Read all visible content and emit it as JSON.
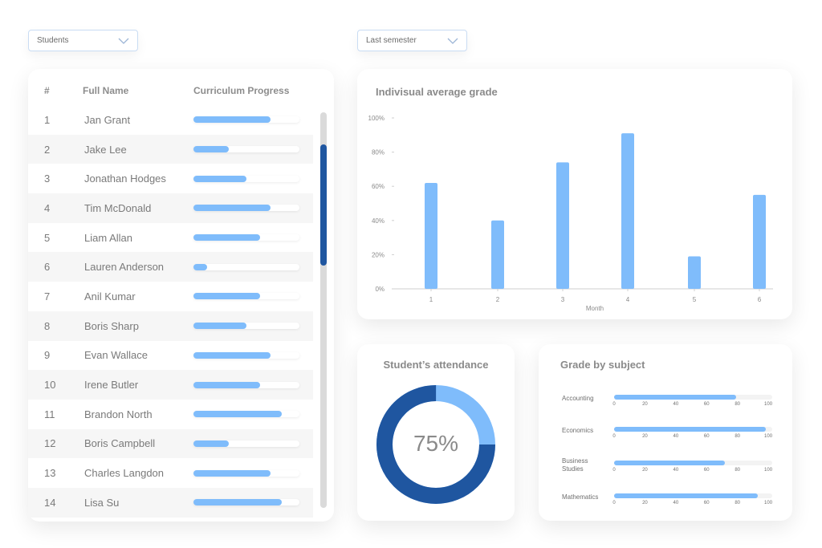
{
  "filters": {
    "group": "Students",
    "period": "Last semester"
  },
  "table": {
    "headers": {
      "num": "#",
      "name": "Full Name",
      "progress": "Curriculum Progress"
    },
    "rows": [
      {
        "num": "1",
        "name": "Jan Grant",
        "progress": 0.73
      },
      {
        "num": "2",
        "name": "Jake Lee",
        "progress": 0.33
      },
      {
        "num": "3",
        "name": "Jonathan Hodges",
        "progress": 0.5
      },
      {
        "num": "4",
        "name": "Tim McDonald",
        "progress": 0.73
      },
      {
        "num": "5",
        "name": "Liam Allan",
        "progress": 0.63
      },
      {
        "num": "6",
        "name": "Lauren Anderson",
        "progress": 0.13
      },
      {
        "num": "7",
        "name": "Anil Kumar",
        "progress": 0.63
      },
      {
        "num": "8",
        "name": "Boris Sharp",
        "progress": 0.5
      },
      {
        "num": "9",
        "name": "Evan Wallace",
        "progress": 0.73
      },
      {
        "num": "10",
        "name": "Irene Butler",
        "progress": 0.63
      },
      {
        "num": "11",
        "name": "Brandon North",
        "progress": 0.83
      },
      {
        "num": "12",
        "name": "Boris Campbell",
        "progress": 0.33
      },
      {
        "num": "13",
        "name": "Charles Langdon",
        "progress": 0.73
      },
      {
        "num": "14",
        "name": "Lisa Su",
        "progress": 0.83
      }
    ]
  },
  "avg_chart_title": "Indivisual average grade",
  "attendance": {
    "title": "Student’s attendance",
    "value": 0.75,
    "label": "75%",
    "colors": {
      "primary": "#1f56a0",
      "secondary": "#7fbcfb"
    }
  },
  "subjects_title": "Grade by subject",
  "chart_data": [
    {
      "type": "bar",
      "title": "Indivisual average grade",
      "categories": [
        "1",
        "2",
        "3",
        "4",
        "5",
        "6"
      ],
      "values": [
        62,
        40,
        74,
        91,
        19,
        55
      ],
      "xlabel": "Month",
      "ylabel": "",
      "ylim": [
        0,
        100
      ],
      "yticks": [
        "0%",
        "20%",
        "40%",
        "60%",
        "80%",
        "100%"
      ],
      "color": "#7fbcfb"
    },
    {
      "type": "bar",
      "title": "Grade by subject",
      "orientation": "horizontal",
      "categories": [
        "Accounting",
        "Economics",
        "Business Studies",
        "Mathematics"
      ],
      "values": [
        77,
        96,
        70,
        91
      ],
      "xlim": [
        0,
        100
      ],
      "xticks": [
        "0",
        "20",
        "40",
        "60",
        "80",
        "100"
      ],
      "color": "#7fbcfb"
    }
  ]
}
